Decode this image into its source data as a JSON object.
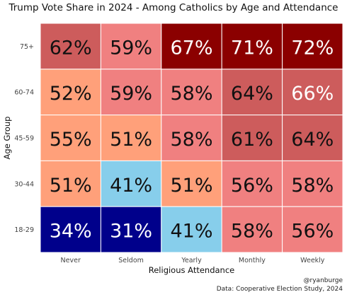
{
  "chart_data": {
    "type": "heatmap",
    "title": "Trump Vote Share in 2024 - Among Catholics by Age and Attendance",
    "xlabel": "Religious Attendance",
    "ylabel": "Age Group",
    "x_categories": [
      "Never",
      "Seldom",
      "Yearly",
      "Monthly",
      "Weekly"
    ],
    "y_categories": [
      "75+",
      "60-74",
      "45-59",
      "30-44",
      "18-29"
    ],
    "values": [
      [
        62,
        59,
        67,
        71,
        72
      ],
      [
        52,
        59,
        58,
        64,
        66
      ],
      [
        55,
        51,
        58,
        61,
        64
      ],
      [
        51,
        41,
        51,
        56,
        58
      ],
      [
        34,
        31,
        41,
        58,
        56
      ]
    ],
    "value_labels": [
      [
        "62%",
        "59%",
        "67%",
        "71%",
        "72%"
      ],
      [
        "52%",
        "59%",
        "58%",
        "64%",
        "66%"
      ],
      [
        "55%",
        "51%",
        "58%",
        "61%",
        "64%"
      ],
      [
        "51%",
        "41%",
        "51%",
        "56%",
        "58%"
      ],
      [
        "34%",
        "31%",
        "41%",
        "58%",
        "56%"
      ]
    ],
    "colors": {
      "very_low": "#00008B",
      "low": "#87CEEB",
      "mid_low": "#FFA07A",
      "mid": "#F08080",
      "mid_high": "#CD5C5C",
      "high": "#8B0000"
    }
  },
  "caption": {
    "line1": "@ryanburge",
    "line2": "Data: Cooperative Election Study, 2024"
  }
}
